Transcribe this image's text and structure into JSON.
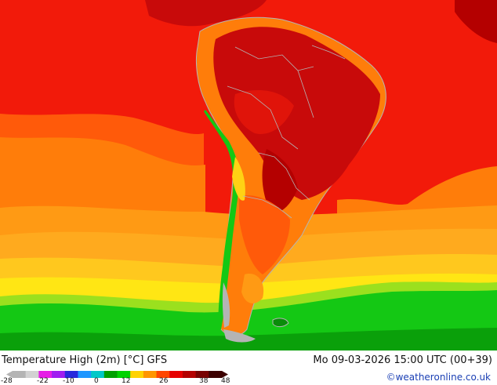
{
  "title": "Temperature High (2m) [°C] GFS",
  "datetime": "Mo 09-03-2026 15:00 UTC (00+39)",
  "credit": "©weatheronline.co.uk",
  "legend": {
    "ticks": [
      "-28",
      "-22",
      "-10",
      "0",
      "12",
      "26",
      "38",
      "48"
    ],
    "colors": [
      "#b4b4b4",
      "#d2d2d2",
      "#e61ee6",
      "#a01ef0",
      "#2828dc",
      "#1e96ff",
      "#00c8c8",
      "#00a000",
      "#00d200",
      "#ffd200",
      "#ff9600",
      "#ff4600",
      "#e60000",
      "#b40000",
      "#780000",
      "#3c0000"
    ]
  },
  "colors": {
    "ocean_red": "#f21a0a",
    "hot_core": "#c80a0a",
    "orange": "#ff7d0a",
    "gold": "#ffaa1e",
    "yellow": "#ffd214",
    "green": "#14c814",
    "dark_green": "#0a8c0a",
    "border": "#b4b4b4"
  }
}
